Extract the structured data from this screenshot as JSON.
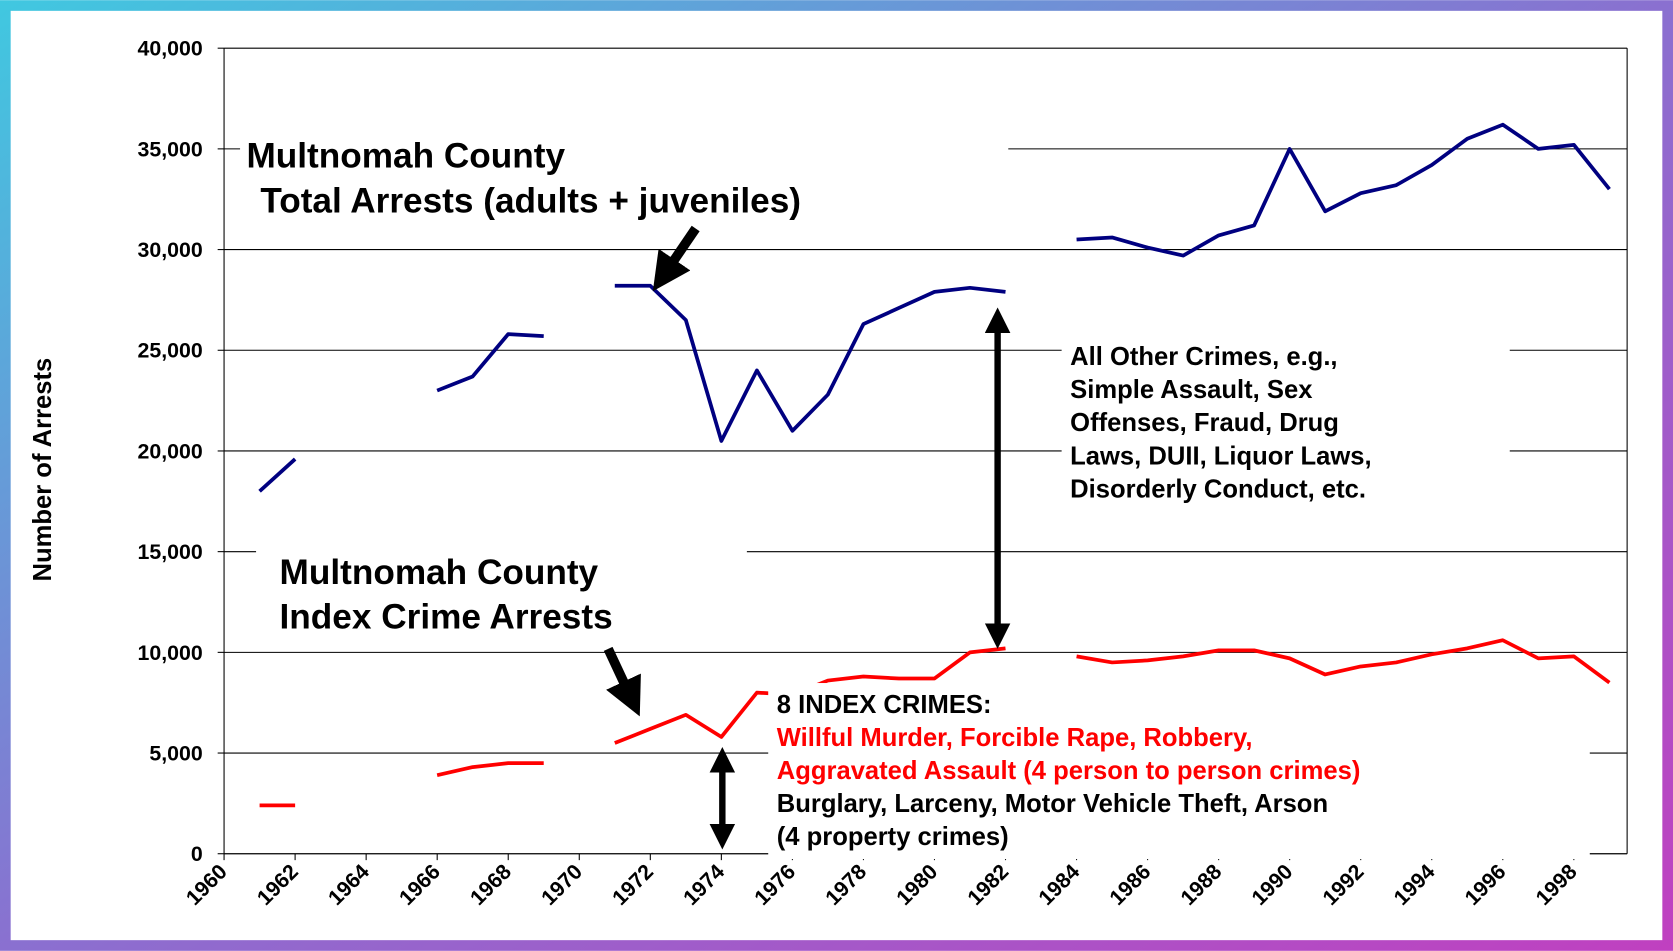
{
  "chart_data": {
    "type": "line",
    "y_label": "Number of Arrests",
    "x": [
      1961,
      1962,
      1963,
      1964,
      1965,
      1966,
      1967,
      1968,
      1969,
      1970,
      1971,
      1972,
      1973,
      1974,
      1975,
      1976,
      1977,
      1978,
      1979,
      1980,
      1981,
      1982,
      1983,
      1984,
      1985,
      1986,
      1987,
      1988,
      1989,
      1990,
      1991,
      1992,
      1993,
      1994,
      1995,
      1996,
      1997,
      1998,
      1999
    ],
    "series": [
      {
        "name": "Multnomah County Total Arrests (adults + juveniles)",
        "color": "#000080",
        "values": [
          18000,
          19600,
          null,
          null,
          null,
          23000,
          23700,
          25800,
          25700,
          null,
          28200,
          28200,
          26500,
          20500,
          24000,
          21000,
          22800,
          26300,
          27100,
          27900,
          28100,
          27900,
          null,
          30500,
          30600,
          30100,
          29700,
          30700,
          31200,
          35000,
          31900,
          32800,
          33200,
          34200,
          35500,
          36200,
          35000,
          35200,
          33000
        ]
      },
      {
        "name": "Multnomah County Index Crime Arrests",
        "color": "#ff0000",
        "values": [
          2400,
          2400,
          null,
          null,
          null,
          3900,
          4300,
          4500,
          4500,
          null,
          5500,
          6200,
          6900,
          5800,
          8000,
          7900,
          8600,
          8800,
          8700,
          8700,
          10000,
          10200,
          null,
          9800,
          9500,
          9600,
          9800,
          10100,
          10100,
          9700,
          8900,
          9300,
          9500,
          9900,
          10200,
          10600,
          9700,
          9800,
          8500
        ]
      }
    ],
    "xlim": [
      1960,
      1999.5
    ],
    "xticks": [
      1960,
      1962,
      1964,
      1966,
      1968,
      1970,
      1972,
      1974,
      1976,
      1978,
      1980,
      1982,
      1984,
      1986,
      1988,
      1990,
      1992,
      1994,
      1996,
      1998
    ],
    "ylim": [
      0,
      40000
    ],
    "yticks": [
      0,
      {
        "value": 5000,
        "label": "5,000"
      },
      {
        "value": 10000,
        "label": "10,000"
      },
      {
        "value": 15000,
        "label": "15,000"
      },
      {
        "value": 20000,
        "label": "20,000"
      },
      {
        "value": 25000,
        "label": "25,000"
      },
      {
        "value": 30000,
        "label": "30,000"
      },
      {
        "value": 35000,
        "label": "35,000"
      },
      {
        "value": 40000,
        "label": "40,000"
      }
    ],
    "grid": true,
    "annotations": {
      "total_label": [
        "Multnomah County",
        "Total Arrests (adults + juveniles)"
      ],
      "index_label": [
        "Multnomah County",
        "Index Crime Arrests"
      ],
      "other_crimes": [
        "All Other Crimes, e.g.,",
        "Simple Assault, Sex",
        "Offenses, Fraud, Drug",
        "Laws, DUII, Liquor Laws,",
        "Disorderly Conduct, etc."
      ],
      "index_crimes": [
        "8 INDEX CRIMES:",
        "Willful Murder, Forcible Rape, Robbery,",
        "Aggravated Assault (4 person to person crimes)",
        "Burglary, Larceny, Motor Vehicle Theft, Arson",
        "(4 property crimes)"
      ]
    }
  }
}
